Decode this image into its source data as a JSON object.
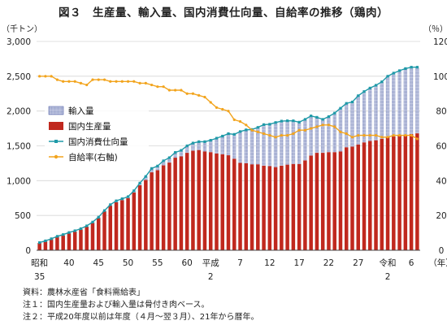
{
  "title": "図３　生産量、輸入量、国内消費仕向量、自給率の推移（鶏肉）",
  "colors": {
    "production": "#c0281e",
    "imports": "#b7bfdc",
    "imports_hatch": "#3a4a9a",
    "consumption": "#1f9aa8",
    "self_sufficiency": "#f2a41d",
    "grid": "#d6d6d6"
  },
  "notes": [
    "資料：農林水産省「食料需給表」",
    "注１：国内生産量および輸入量は骨付き肉ベース。",
    "注２：平成20年度以前は年度（４月～翌３月）、21年から暦年。"
  ],
  "chart_data": {
    "type": "bar",
    "stacked": true,
    "title": "図３　生産量、輸入量、国内消費仕向量、自給率の推移（鶏肉）",
    "y_left": {
      "unit": "（千トン）",
      "range": [
        0,
        3000
      ],
      "ticks": [
        "0",
        "500",
        "1,000",
        "1,500",
        "2,000",
        "2,500",
        "3,000"
      ]
    },
    "y_right": {
      "unit": "（％）",
      "range": [
        0,
        120
      ],
      "ticks": [
        "0",
        "20",
        "40",
        "60",
        "80",
        "100",
        "120"
      ]
    },
    "x_unit": "（年）",
    "x_tick_labels": [
      {
        "i": 0,
        "line1": "昭和",
        "line2": "35"
      },
      {
        "i": 5,
        "line1": "40",
        "line2": ""
      },
      {
        "i": 10,
        "line1": "45",
        "line2": ""
      },
      {
        "i": 15,
        "line1": "50",
        "line2": ""
      },
      {
        "i": 20,
        "line1": "55",
        "line2": ""
      },
      {
        "i": 25,
        "line1": "60",
        "line2": ""
      },
      {
        "i": 29,
        "line1": "平成",
        "line2": "2"
      },
      {
        "i": 34,
        "line1": "7",
        "line2": ""
      },
      {
        "i": 39,
        "line1": "12",
        "line2": ""
      },
      {
        "i": 44,
        "line1": "17",
        "line2": ""
      },
      {
        "i": 49,
        "line1": "22",
        "line2": ""
      },
      {
        "i": 54,
        "line1": "27",
        "line2": ""
      },
      {
        "i": 59,
        "line1": "令和",
        "line2": "2"
      },
      {
        "i": 63,
        "line1": "6",
        "line2": ""
      }
    ],
    "grid": true,
    "legend_position": "left-middle",
    "series": [
      {
        "name": "国内生産量",
        "kind": "bar",
        "axis": "left",
        "values": [
          105,
          130,
          160,
          195,
          215,
          245,
          270,
          300,
          340,
          395,
          465,
          560,
          640,
          690,
          720,
          750,
          830,
          935,
          1010,
          1120,
          1150,
          1220,
          1260,
          1330,
          1350,
          1400,
          1430,
          1440,
          1420,
          1410,
          1390,
          1380,
          1365,
          1315,
          1255,
          1250,
          1235,
          1235,
          1215,
          1210,
          1195,
          1215,
          1230,
          1240,
          1240,
          1290,
          1360,
          1400,
          1400,
          1410,
          1410,
          1420,
          1480,
          1490,
          1520,
          1550,
          1570,
          1580,
          1600,
          1630,
          1635,
          1650,
          1660,
          1670,
          1680
        ]
      },
      {
        "name": "輸入量",
        "kind": "bar",
        "axis": "left",
        "values": [
          0,
          0,
          0,
          0,
          5,
          5,
          5,
          5,
          5,
          10,
          10,
          10,
          15,
          20,
          20,
          20,
          25,
          30,
          50,
          55,
          60,
          65,
          70,
          75,
          85,
          100,
          110,
          120,
          140,
          170,
          220,
          260,
          310,
          350,
          450,
          480,
          500,
          530,
          590,
          600,
          640,
          640,
          630,
          620,
          600,
          590,
          570,
          510,
          480,
          510,
          560,
          620,
          630,
          640,
          700,
          730,
          760,
          790,
          820,
          870,
          910,
          930,
          950,
          960,
          950
        ]
      },
      {
        "name": "国内消費仕向量",
        "kind": "line",
        "axis": "left",
        "values": [
          110,
          135,
          165,
          200,
          225,
          255,
          280,
          310,
          350,
          405,
          475,
          570,
          655,
          710,
          740,
          770,
          855,
          965,
          1060,
          1175,
          1210,
          1285,
          1330,
          1405,
          1435,
          1500,
          1540,
          1560,
          1560,
          1580,
          1610,
          1640,
          1675,
          1665,
          1705,
          1730,
          1735,
          1765,
          1805,
          1810,
          1835,
          1855,
          1860,
          1860,
          1840,
          1880,
          1930,
          1910,
          1880,
          1920,
          1970,
          2040,
          2110,
          2130,
          2220,
          2280,
          2330,
          2370,
          2420,
          2500,
          2545,
          2580,
          2610,
          2630,
          2630
        ]
      },
      {
        "name": "自給率(右軸)",
        "kind": "line",
        "axis": "right",
        "values": [
          100,
          100,
          100,
          98,
          97,
          97,
          97,
          96,
          95,
          98,
          98,
          98,
          97,
          97,
          97,
          97,
          97,
          96,
          96,
          95,
          94,
          94,
          92,
          92,
          92,
          90,
          90,
          89,
          88,
          85,
          82,
          81,
          80,
          75,
          74,
          72,
          69,
          68,
          67,
          66,
          65,
          66,
          66,
          67,
          69,
          69,
          70,
          71,
          72,
          72,
          71,
          68,
          67,
          65,
          66,
          66,
          66,
          66,
          65,
          65,
          66,
          66,
          66,
          66,
          64
        ]
      }
    ],
    "year_labels_visible": [
      "昭和35",
      "40",
      "45",
      "50",
      "55",
      "60",
      "平成2",
      "7",
      "12",
      "17",
      "22",
      "27",
      "令和2",
      "6"
    ]
  },
  "legend": [
    {
      "key": "imports",
      "label": "輸入量"
    },
    {
      "key": "production",
      "label": "国内生産量"
    },
    {
      "key": "consumption",
      "label": "国内消費仕向量"
    },
    {
      "key": "self_sufficiency",
      "label": "自給率(右軸)"
    }
  ]
}
